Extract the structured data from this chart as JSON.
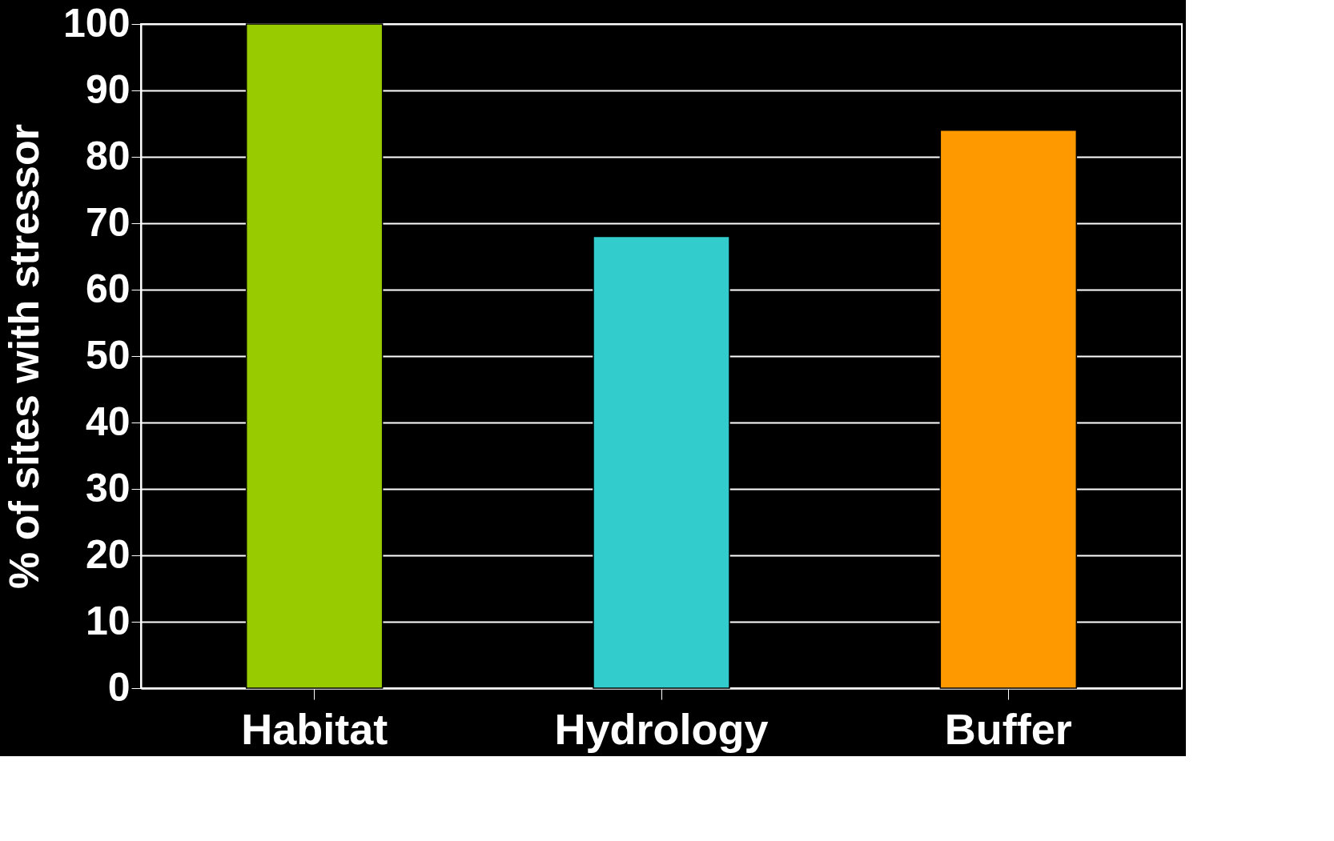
{
  "chart_data": {
    "type": "bar",
    "ylabel": "% of sites with stressor",
    "categories": [
      "Habitat",
      "Hydrology",
      "Buffer"
    ],
    "values": [
      100,
      68,
      84
    ],
    "colors": [
      "#99cc00",
      "#33cccc",
      "#ff9900"
    ],
    "ylim": [
      0,
      100
    ],
    "yticks": [
      0,
      10,
      20,
      30,
      40,
      50,
      60,
      70,
      80,
      90,
      100
    ],
    "grid": "y"
  }
}
